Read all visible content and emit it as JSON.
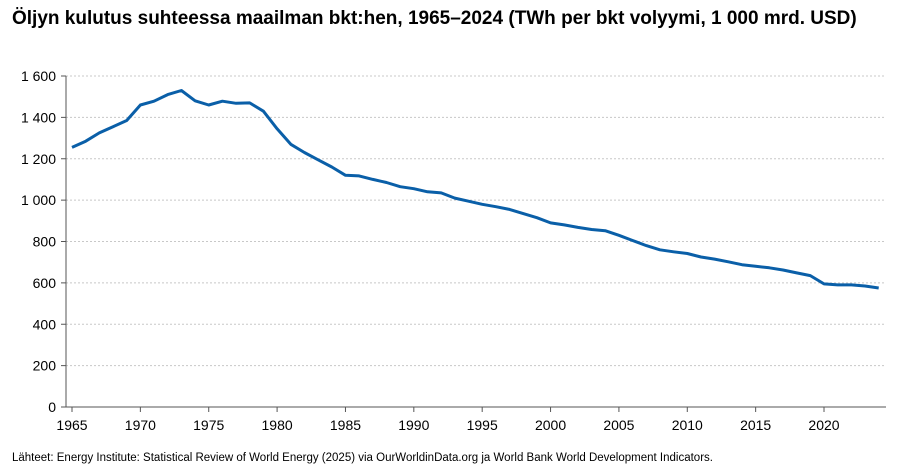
{
  "chart_data": {
    "type": "line",
    "title": "Öljyn kulutus suhteessa maailman bkt:hen, 1965–2024 (TWh per bkt volyymi, 1 000 mrd. USD)",
    "source": "Lähteet: Energy Institute: Statistical Review of World Energy (2025) via OurWorldinData.org ja World Bank World Development Indicators.",
    "xlim": [
      1965,
      2024
    ],
    "ylim": [
      0,
      1600
    ],
    "grid": true,
    "line_color": "#0a5fa8",
    "x_ticks": [
      "1965",
      "1970",
      "1975",
      "1980",
      "1985",
      "1990",
      "1995",
      "2000",
      "2005",
      "2010",
      "2015",
      "2020"
    ],
    "y_ticks": [
      "0",
      "200",
      "400",
      "600",
      "800",
      "1 000",
      "1 200",
      "1 400",
      "1 600"
    ],
    "x": [
      1965,
      1966,
      1967,
      1968,
      1969,
      1970,
      1971,
      1972,
      1973,
      1974,
      1975,
      1976,
      1977,
      1978,
      1979,
      1980,
      1981,
      1982,
      1983,
      1984,
      1985,
      1986,
      1987,
      1988,
      1989,
      1990,
      1991,
      1992,
      1993,
      1994,
      1995,
      1996,
      1997,
      1998,
      1999,
      2000,
      2001,
      2002,
      2003,
      2004,
      2005,
      2006,
      2007,
      2008,
      2009,
      2010,
      2011,
      2012,
      2013,
      2014,
      2015,
      2016,
      2017,
      2018,
      2019,
      2020,
      2021,
      2022,
      2023,
      2024
    ],
    "values": [
      1255,
      1285,
      1325,
      1355,
      1385,
      1460,
      1478,
      1510,
      1530,
      1480,
      1460,
      1478,
      1468,
      1470,
      1430,
      1345,
      1270,
      1230,
      1195,
      1160,
      1120,
      1117,
      1100,
      1085,
      1065,
      1055,
      1040,
      1035,
      1010,
      995,
      980,
      968,
      955,
      935,
      915,
      890,
      880,
      868,
      858,
      852,
      830,
      805,
      780,
      760,
      750,
      742,
      725,
      715,
      702,
      688,
      680,
      673,
      662,
      648,
      635,
      595,
      590,
      590,
      585,
      575
    ]
  }
}
